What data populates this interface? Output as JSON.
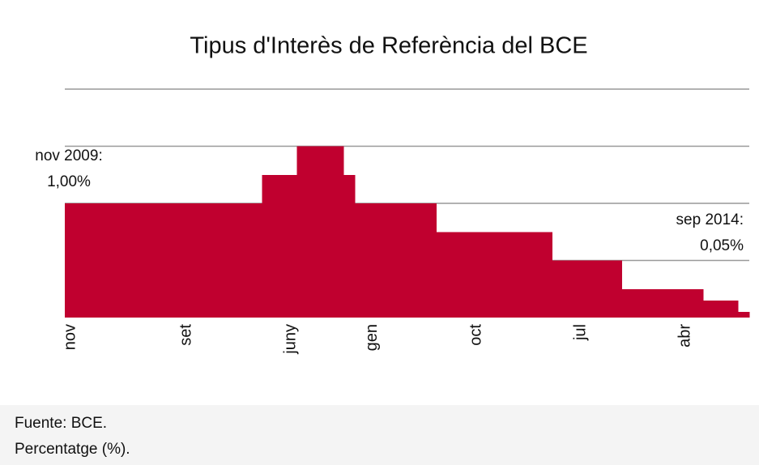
{
  "chart_data": {
    "type": "bar",
    "title": "Tipus d'Interès de Referència del BCE",
    "categories": [
      "nov",
      null,
      null,
      null,
      null,
      null,
      null,
      null,
      null,
      null,
      "set",
      null,
      null,
      null,
      null,
      null,
      null,
      null,
      null,
      "juny",
      null,
      null,
      null,
      null,
      null,
      null,
      "gen",
      null,
      null,
      null,
      null,
      null,
      null,
      null,
      null,
      "oct",
      null,
      null,
      null,
      null,
      null,
      null,
      null,
      null,
      "jul",
      null,
      null,
      null,
      null,
      null,
      null,
      null,
      null,
      "abr",
      null,
      null,
      null,
      null,
      null
    ],
    "values": [
      1.0,
      1.0,
      1.0,
      1.0,
      1.0,
      1.0,
      1.0,
      1.0,
      1.0,
      1.0,
      1.0,
      1.0,
      1.0,
      1.0,
      1.0,
      1.0,
      1.0,
      1.25,
      1.25,
      1.25,
      1.5,
      1.5,
      1.5,
      1.5,
      1.25,
      1.0,
      1.0,
      1.0,
      1.0,
      1.0,
      1.0,
      1.0,
      0.75,
      0.75,
      0.75,
      0.75,
      0.75,
      0.75,
      0.75,
      0.75,
      0.75,
      0.75,
      0.5,
      0.5,
      0.5,
      0.5,
      0.5,
      0.5,
      0.25,
      0.25,
      0.25,
      0.25,
      0.25,
      0.25,
      0.25,
      0.15,
      0.15,
      0.15,
      0.05
    ],
    "color": "#c0002f",
    "ylim": [
      0,
      2
    ],
    "yticks": [
      0.5,
      1,
      1.5,
      2
    ],
    "grid": true,
    "annotations": [
      {
        "lines": [
          "nov 2009:",
          "1,00%"
        ]
      },
      {
        "lines": [
          "sep 2014:",
          "0,05%"
        ]
      }
    ],
    "source": "Fuente: BCE.",
    "unit_note": "Percentatge (%)."
  }
}
